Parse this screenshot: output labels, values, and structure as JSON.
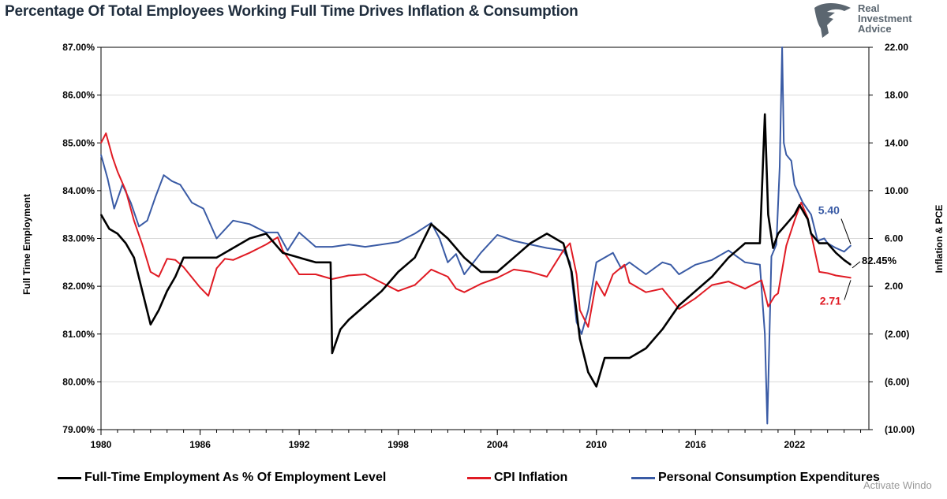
{
  "title": "Percentage Of Total Employees Working Full Time Drives Inflation & Consumption",
  "logo": {
    "icon": "eagle-icon",
    "lines": [
      "Real",
      "Investment",
      "Advice"
    ]
  },
  "watermark": "Activate Windo",
  "chart_data": {
    "type": "line",
    "ylabel_left": "Full Time Employment",
    "ylabel_right": "Inflation & PCE",
    "x_ticks": [
      "1980",
      "1986",
      "1992",
      "1998",
      "2004",
      "2010",
      "2016",
      "2022"
    ],
    "x_range": [
      1980,
      2026.5
    ],
    "y_left_ticks": [
      "87.00%",
      "86.00%",
      "85.00%",
      "84.00%",
      "83.00%",
      "82.00%",
      "81.00%",
      "80.00%",
      "79.00%"
    ],
    "y_left_range": [
      79,
      87
    ],
    "y_right_ticks": [
      "22.00",
      "18.00",
      "14.00",
      "10.00",
      "6.00",
      "2.00",
      "(2.00)",
      "(6.00)",
      "(10.00)"
    ],
    "y_right_range": [
      -10,
      22
    ],
    "grid": "horizontal",
    "legend_position": "bottom",
    "series": [
      {
        "name": "Full-Time Employment As % Of Employment Level",
        "axis": "left",
        "color": "#000000",
        "x": [
          1980,
          1980.5,
          1981,
          1981.5,
          1982,
          1982.5,
          1983,
          1983.5,
          1984,
          1984.5,
          1985,
          1986,
          1987,
          1988,
          1989,
          1990,
          1991,
          1992,
          1993,
          1993.9,
          1994,
          1994.5,
          1995,
          1996,
          1997,
          1998,
          1999,
          2000,
          2001,
          2002,
          2003,
          2004,
          2005,
          2006,
          2007,
          2008,
          2008.5,
          2009,
          2009.5,
          2010,
          2010.5,
          2011,
          2012,
          2013,
          2014,
          2015,
          2016,
          2017,
          2018,
          2019,
          2019.9,
          2020.2,
          2020.4,
          2020.7,
          2021,
          2021.5,
          2022,
          2022.3,
          2022.8,
          2023,
          2023.5,
          2024,
          2024.5,
          2025,
          2025.4
        ],
        "y": [
          83.5,
          83.2,
          83.1,
          82.9,
          82.6,
          81.9,
          81.2,
          81.5,
          81.9,
          82.2,
          82.6,
          82.6,
          82.6,
          82.8,
          83.0,
          83.1,
          82.7,
          82.6,
          82.5,
          82.5,
          80.6,
          81.1,
          81.3,
          81.6,
          81.9,
          82.3,
          82.6,
          83.3,
          83.0,
          82.6,
          82.3,
          82.3,
          82.6,
          82.9,
          83.1,
          82.9,
          82.3,
          80.9,
          80.2,
          79.9,
          80.5,
          80.5,
          80.5,
          80.7,
          81.1,
          81.6,
          81.9,
          82.2,
          82.6,
          82.9,
          82.9,
          85.6,
          83.5,
          82.8,
          83.1,
          83.3,
          83.5,
          83.7,
          83.4,
          83.1,
          82.9,
          82.9,
          82.7,
          82.55,
          82.45
        ]
      },
      {
        "name": "CPI Inflation",
        "axis": "right",
        "color": "#e01b24",
        "x": [
          1980,
          1980.3,
          1980.7,
          1981,
          1981.5,
          1982,
          1982.5,
          1983,
          1983.5,
          1984,
          1984.5,
          1985,
          1986,
          1986.5,
          1987,
          1987.5,
          1988,
          1989,
          1990,
          1990.7,
          1991,
          1991.5,
          1992,
          1993,
          1994,
          1995,
          1996,
          1997,
          1998,
          1999,
          2000,
          2001,
          2001.5,
          2002,
          2003,
          2004,
          2005,
          2006,
          2007,
          2008,
          2008.4,
          2008.8,
          2009,
          2009.5,
          2010,
          2010.5,
          2011,
          2011.7,
          2012,
          2013,
          2014,
          2015,
          2016,
          2017,
          2018,
          2019,
          2020,
          2020.4,
          2020.8,
          2021,
          2021.5,
          2022,
          2022.4,
          2022.8,
          2023,
          2023.5,
          2024,
          2024.5,
          2025,
          2025.4
        ],
        "y": [
          14.0,
          14.8,
          12.8,
          11.6,
          10.0,
          7.5,
          5.5,
          3.2,
          2.8,
          4.3,
          4.2,
          3.6,
          1.9,
          1.2,
          3.5,
          4.3,
          4.2,
          4.8,
          5.5,
          6.1,
          5.0,
          4.0,
          3.0,
          3.0,
          2.6,
          2.9,
          3.0,
          2.3,
          1.6,
          2.1,
          3.4,
          2.8,
          1.8,
          1.5,
          2.2,
          2.7,
          3.4,
          3.2,
          2.8,
          5.0,
          5.6,
          3.0,
          0.0,
          -1.4,
          2.4,
          1.2,
          3.0,
          3.8,
          2.3,
          1.5,
          1.8,
          0.1,
          1.0,
          2.1,
          2.4,
          1.8,
          2.5,
          0.3,
          1.2,
          1.4,
          5.4,
          7.5,
          9.0,
          7.7,
          6.4,
          3.2,
          3.1,
          2.9,
          2.8,
          2.71
        ]
      },
      {
        "name": "Personal Consumption Expenditures",
        "axis": "right",
        "color": "#3a5ba5",
        "x": [
          1980,
          1980.4,
          1980.8,
          1981.3,
          1981.8,
          1982.3,
          1982.8,
          1983.3,
          1983.8,
          1984.3,
          1984.8,
          1985.5,
          1986.2,
          1987,
          1988,
          1989,
          1990,
          1990.7,
          1991.3,
          1992,
          1993,
          1994,
          1995,
          1996,
          1997,
          1998,
          1999,
          2000,
          2000.5,
          2001,
          2001.5,
          2002,
          2003,
          2004,
          2005,
          2006,
          2007,
          2008,
          2008.4,
          2008.8,
          2009.1,
          2009.5,
          2010,
          2011,
          2011.5,
          2012,
          2013,
          2014,
          2014.5,
          2015,
          2016,
          2017,
          2018,
          2019,
          2019.9,
          2020.2,
          2020.35,
          2020.6,
          2020.9,
          2021.1,
          2021.25,
          2021.35,
          2021.5,
          2021.8,
          2022,
          2022.5,
          2023,
          2023.4,
          2023.8,
          2024,
          2024.5,
          2025,
          2025.4
        ],
        "y": [
          13.0,
          11.0,
          8.5,
          10.5,
          9.0,
          7.0,
          7.5,
          9.5,
          11.3,
          10.8,
          10.5,
          9.0,
          8.5,
          6.0,
          7.5,
          7.2,
          6.5,
          6.5,
          5.0,
          6.5,
          5.3,
          5.3,
          5.5,
          5.3,
          5.5,
          5.7,
          6.4,
          7.3,
          6.0,
          4.0,
          4.7,
          3.0,
          4.8,
          6.3,
          5.8,
          5.5,
          5.2,
          5.0,
          4.0,
          -1.0,
          -2.0,
          0.0,
          4.0,
          4.8,
          3.5,
          4.0,
          3.0,
          4.0,
          3.8,
          3.0,
          3.8,
          4.2,
          5.0,
          4.0,
          3.8,
          -2.0,
          -9.5,
          4.5,
          5.5,
          12.0,
          22.0,
          14.0,
          13.0,
          12.5,
          10.5,
          9.0,
          8.0,
          5.8,
          6.0,
          5.6,
          5.2,
          4.9,
          5.4
        ]
      }
    ],
    "annotations": [
      {
        "text": "5.40",
        "color": "#3a5ba5"
      },
      {
        "text": "82.45%",
        "color": "#000000"
      },
      {
        "text": "2.71",
        "color": "#e01b24"
      }
    ]
  }
}
